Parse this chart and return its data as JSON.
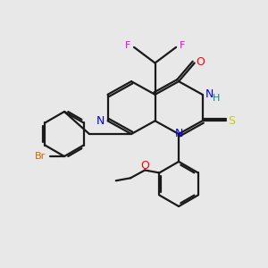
{
  "bg_color": "#e8e8e8",
  "bond_color": "#1a1a1a",
  "lw": 1.6,
  "atom_colors": {
    "F": "#ee00ee",
    "O": "#ff0000",
    "N": "#0000ee",
    "S": "#cccc00",
    "Br": "#cc6600",
    "H": "#008888",
    "C": "#1a1a1a"
  }
}
